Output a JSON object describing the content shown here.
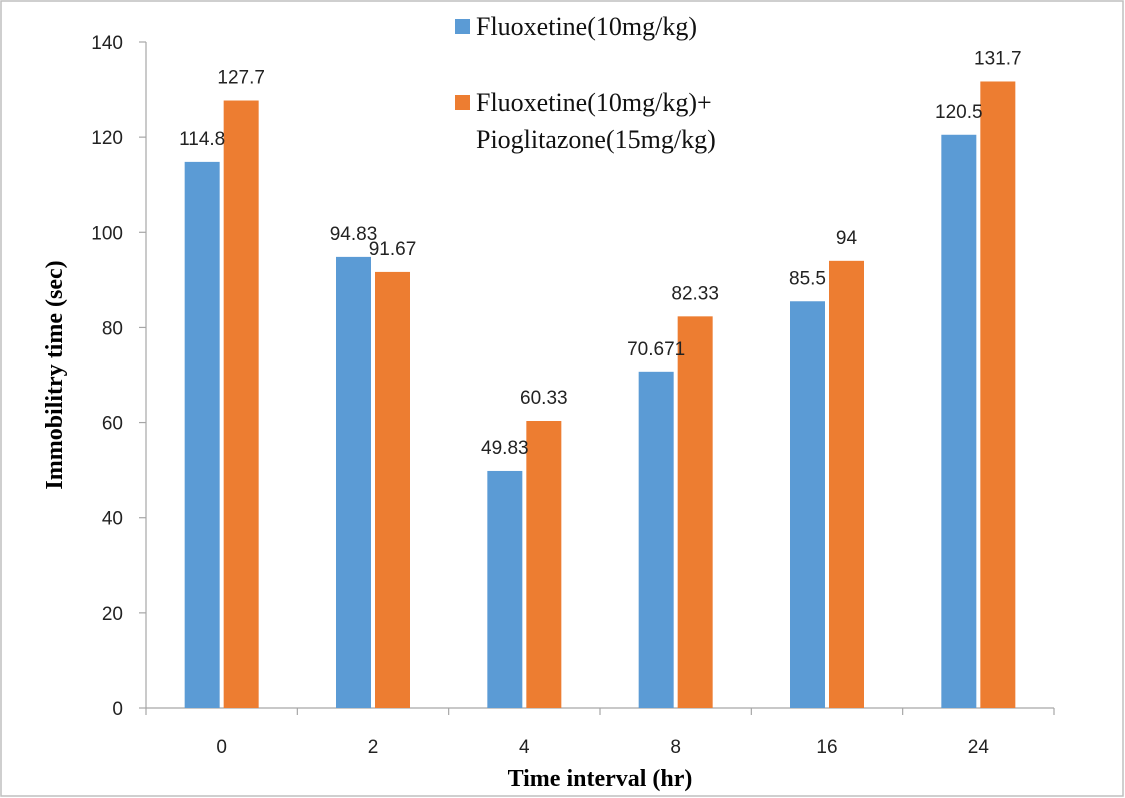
{
  "chart_data": {
    "type": "bar",
    "categories": [
      "0",
      "2",
      "4",
      "8",
      "16",
      "24"
    ],
    "series": [
      {
        "name": "Fluoxetine(10mg/kg)",
        "color": "#5b9bd5",
        "values": [
          114.8,
          94.83,
          49.83,
          70.671,
          85.5,
          120.5
        ],
        "labels": [
          "114.8",
          "94.83",
          "49.83",
          "70.671",
          "85.5",
          "120.5"
        ]
      },
      {
        "name": "Fluoxetine(10mg/kg)+ Pioglitazone(15mg/kg)",
        "name_lines": [
          "Fluoxetine(10mg/kg)+",
          "Pioglitazone(15mg/kg)"
        ],
        "color": "#ed7d31",
        "values": [
          127.7,
          91.67,
          60.33,
          82.33,
          94,
          131.7
        ],
        "labels": [
          "127.7",
          "91.67",
          "60.33",
          "82.33",
          "94",
          "131.7"
        ]
      }
    ],
    "xlabel": "Time interval (hr)",
    "ylabel": "Immobilitry  time (sec)",
    "ylim": [
      0,
      140
    ],
    "yticks": [
      0,
      20,
      40,
      60,
      80,
      100,
      120,
      140
    ],
    "grid": false,
    "legend_position": "top-center"
  }
}
